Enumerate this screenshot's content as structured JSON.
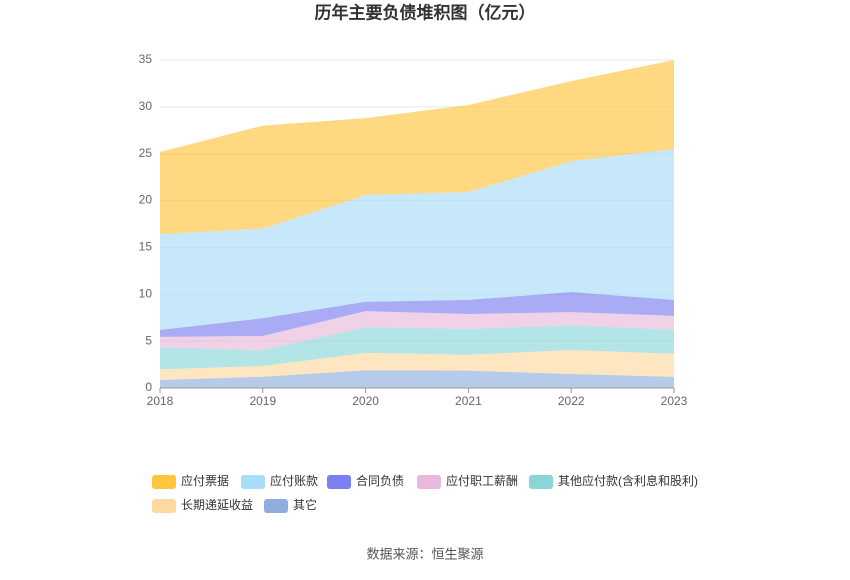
{
  "chart_data": {
    "type": "stacked_area",
    "title": "历年主要负债堆积图（亿元）",
    "categories": [
      "2018",
      "2019",
      "2020",
      "2021",
      "2022",
      "2023"
    ],
    "series": [
      {
        "name": "其它",
        "color": "#8faedd",
        "values": [
          0.85,
          1.2,
          1.9,
          1.85,
          1.5,
          1.2
        ]
      },
      {
        "name": "长期递延收益",
        "color": "#fdd9a0",
        "values": [
          1.15,
          1.15,
          1.85,
          1.7,
          2.55,
          2.45
        ]
      },
      {
        "name": "其他应付款(含利息和股利)",
        "color": "#8ad5d8",
        "values": [
          2.3,
          1.7,
          2.75,
          2.75,
          2.65,
          2.55
        ]
      },
      {
        "name": "应付职工薪酬",
        "color": "#e8b9dc",
        "values": [
          1.15,
          1.5,
          1.7,
          1.6,
          1.4,
          1.5
        ]
      },
      {
        "name": "合同负债",
        "color": "#7b7ff0",
        "values": [
          0.75,
          1.9,
          1.0,
          1.5,
          2.15,
          1.7
        ]
      },
      {
        "name": "应付账款",
        "color": "#a8dcf8",
        "values": [
          10.2,
          9.55,
          11.4,
          11.5,
          13.95,
          16.1
        ]
      },
      {
        "name": "应付票据",
        "color": "#ffc53d",
        "values": [
          8.8,
          11.0,
          8.2,
          9.3,
          8.55,
          9.5
        ]
      }
    ],
    "ylim": [
      0,
      35
    ],
    "yticks": [
      0,
      5,
      10,
      15,
      20,
      25,
      30,
      35
    ],
    "grid": true,
    "source": "数据来源：恒生聚源"
  }
}
